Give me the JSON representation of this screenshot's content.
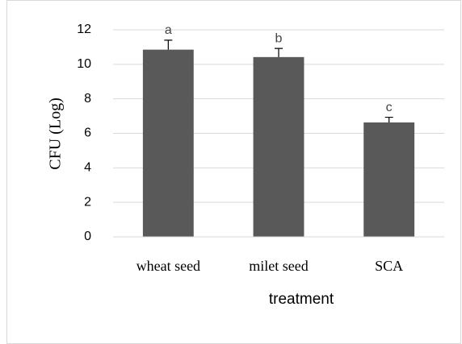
{
  "chart_data": {
    "type": "bar",
    "categories": [
      "wheat seed",
      "milet seed",
      "SCA"
    ],
    "values": [
      10.85,
      10.42,
      6.63
    ],
    "errors": [
      0.55,
      0.5,
      0.3
    ],
    "annotations": [
      "a",
      "b",
      "c"
    ],
    "color": "#595959",
    "xlabel": "treatment",
    "ylabel": "CFU (Log)",
    "ylim": [
      0,
      12
    ],
    "yticks": [
      0,
      2,
      4,
      6,
      8,
      10,
      12
    ],
    "grid": true
  }
}
